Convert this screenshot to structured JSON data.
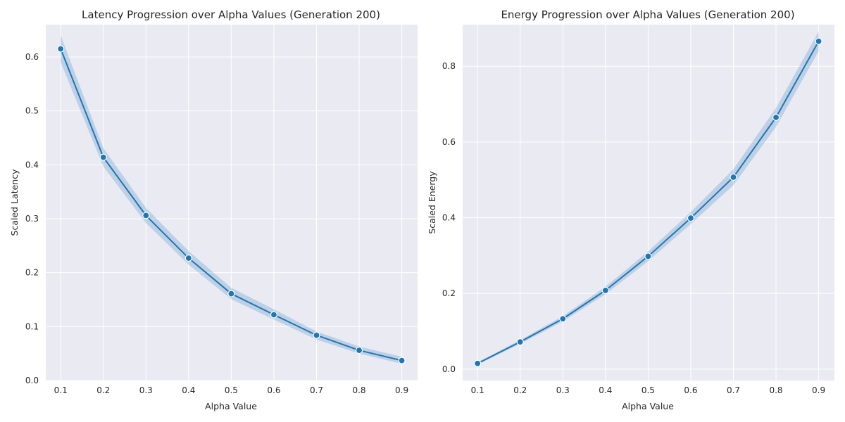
{
  "colors": {
    "series": "#1f77b4",
    "band": "#1f77b4",
    "plot_background": "#eaeaf2",
    "grid": "#ffffff"
  },
  "chart_data": [
    {
      "type": "line",
      "title": "Latency Progression over Alpha Values (Generation 200)",
      "xlabel": "Alpha Value",
      "ylabel": "Scaled Latency",
      "xlim": [
        0.065,
        0.937
      ],
      "ylim": [
        0.0,
        0.66
      ],
      "x_ticks": [
        "0.1",
        "0.2",
        "0.3",
        "0.4",
        "0.5",
        "0.6",
        "0.7",
        "0.8",
        "0.9"
      ],
      "y_ticks": [
        "0.0",
        "0.1",
        "0.2",
        "0.3",
        "0.4",
        "0.5",
        "0.6"
      ],
      "grid": true,
      "x": [
        0.1,
        0.2,
        0.3,
        0.4,
        0.5,
        0.6,
        0.7,
        0.8,
        0.9
      ],
      "series": [
        {
          "values": [
            0.615,
            0.414,
            0.306,
            0.227,
            0.161,
            0.122,
            0.084,
            0.056,
            0.037
          ],
          "ci_lower": [
            0.59,
            0.397,
            0.292,
            0.215,
            0.151,
            0.113,
            0.076,
            0.05,
            0.031
          ],
          "ci_upper": [
            0.64,
            0.431,
            0.32,
            0.24,
            0.172,
            0.132,
            0.091,
            0.063,
            0.044
          ]
        }
      ]
    },
    {
      "type": "line",
      "title": "Energy Progression over Alpha Values (Generation 200)",
      "xlabel": "Alpha Value",
      "ylabel": "Scaled Energy",
      "xlim": [
        0.065,
        0.937
      ],
      "ylim": [
        -0.03,
        0.91
      ],
      "x_ticks": [
        "0.1",
        "0.2",
        "0.3",
        "0.4",
        "0.5",
        "0.6",
        "0.7",
        "0.8",
        "0.9"
      ],
      "y_ticks": [
        "0.0",
        "0.2",
        "0.4",
        "0.6",
        "0.8"
      ],
      "grid": true,
      "x": [
        0.1,
        0.2,
        0.3,
        0.4,
        0.5,
        0.6,
        0.7,
        0.8,
        0.9
      ],
      "series": [
        {
          "values": [
            0.015,
            0.072,
            0.133,
            0.208,
            0.298,
            0.399,
            0.507,
            0.665,
            0.866
          ],
          "ci_lower": [
            0.012,
            0.067,
            0.126,
            0.198,
            0.285,
            0.383,
            0.486,
            0.64,
            0.84
          ],
          "ci_upper": [
            0.018,
            0.077,
            0.14,
            0.218,
            0.311,
            0.415,
            0.528,
            0.69,
            0.892
          ]
        }
      ]
    }
  ]
}
